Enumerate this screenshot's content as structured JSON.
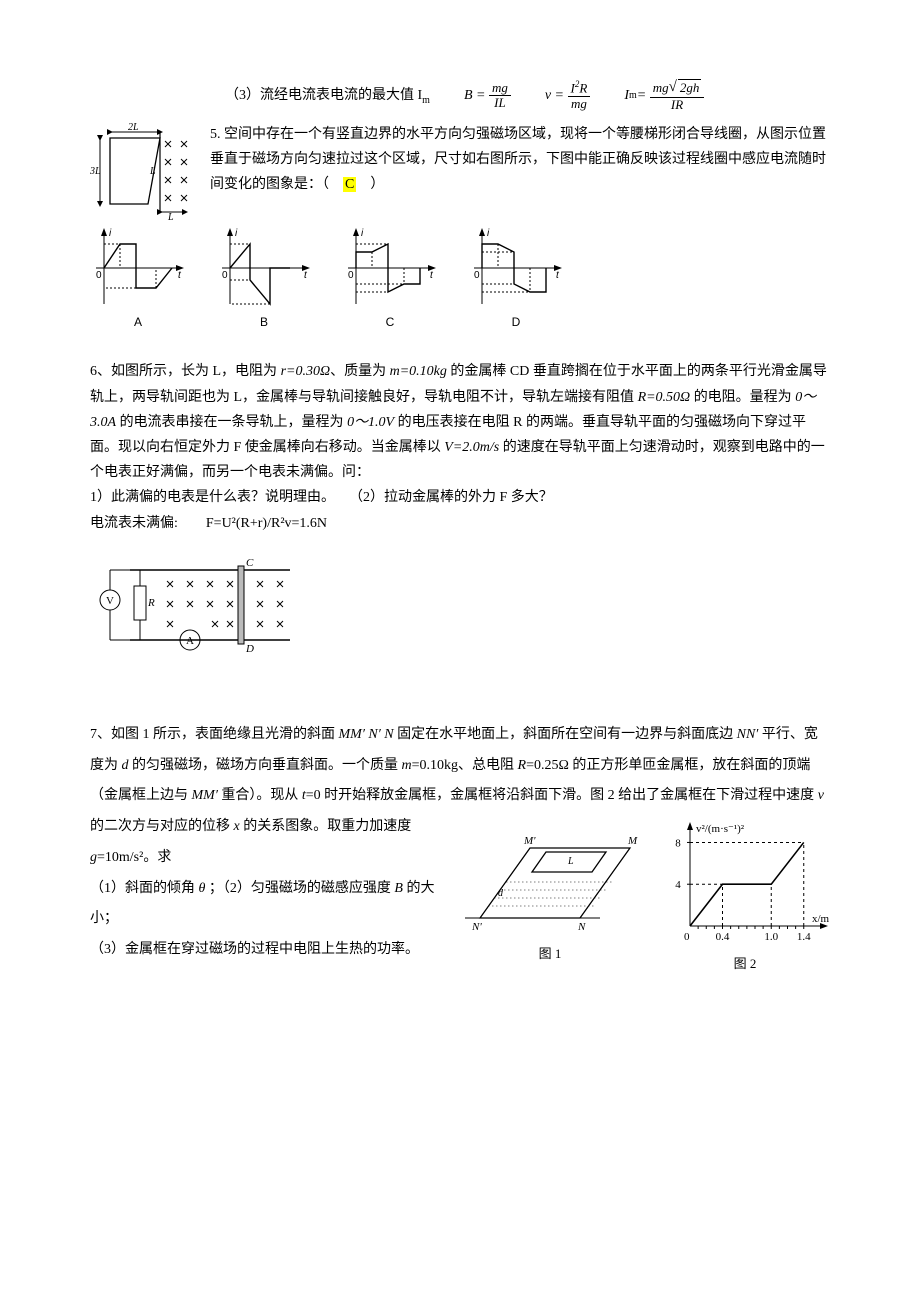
{
  "line3": {
    "prefix": "（3）流经电流表电流的最大值 I",
    "sub": "m",
    "f1_lhs": "B =",
    "f1_num": "mg",
    "f1_den": "IL",
    "f2_lhs": "v =",
    "f2_num_a": "I",
    "f2_num_exp": "2",
    "f2_num_b": "R",
    "f2_den": "mg",
    "f3_lhs_a": "I",
    "f3_lhs_sub": "m",
    "f3_eq": " =",
    "f3_num_a": "mg",
    "f3_num_rad": "2gh",
    "f3_den": "IR"
  },
  "p5": {
    "text": "5. 空间中存在一个有竖直边界的水平方向匀强磁场区域，现将一个等腰梯形闭合导线圈，从图示位置垂直于磁场方向匀速拉过这个区域，尺寸如右图所示，下图中能正确反映该过程线圈中感应电流随时间变化的图象是：（　",
    "ans": "C",
    "text2": "　）",
    "optA": "A",
    "optB": "B",
    "optC": "C",
    "optD": "D",
    "trap_2L": "2L",
    "trap_3L": "3L",
    "trap_Lr": "L",
    "trap_Lb": "L",
    "axis_i": "i",
    "axis_t": "t",
    "axis_0": "0"
  },
  "p6": {
    "t1a": "6、如图所示，长为 L，电阻为 ",
    "t1b": "r=0.30Ω",
    "t1c": "、质量为 ",
    "t1d": "m=0.10kg",
    "t1e": " 的金属棒 CD 垂直跨搁在位于水平面上的两条平行光滑金属导轨上，两导轨间距也为 L，金属棒与导轨间接触良好，导轨电阻不计，导轨左端接有阻值 ",
    "t2a": "R=0.50Ω",
    "t2b": " 的电阻。量程为 ",
    "t2c": "0～3.0A",
    "t2d": " 的电流表串接在一条导轨上，量程为 ",
    "t2e": "0～1.0V",
    "t2f": " 的电压表接在电阻 R 的两端。垂直导轨平面的匀强磁场向下穿过平面。现以向右恒定外力 F 使金属棒向右移动。当金属棒以 ",
    "t2g": "V=2.0m/s",
    "t2h": " 的速度在导轨平面上匀速滑动时，观察到电路中的一个电表正好满偏，而另一个电表未满偏。问：",
    "q1": "1）此满偏的电表是什么表？说明理由。　　（2）拉动金属棒的外力 F 多大？",
    "ans": "电流表未满偏:　　F=U²(R+r)/R²v=1.6N",
    "lblV": "V",
    "lblR": "R",
    "lblA": "A",
    "lblC": "C",
    "lblD": "D"
  },
  "p7": {
    "t1": "7、如图 1 所示，表面绝缘且光滑的斜面 ",
    "mm": "MM′ N′ N",
    "t1b": " 固定在水平地面上，斜面所在空间有一边界与斜面底边 ",
    "nn": "NN′",
    "t2": " 平行、宽度为 ",
    "d": "d",
    "t2b": " 的匀强磁场，磁场方向垂直斜面。一个质量 ",
    "m": "m",
    "t2c": "=0.10kg、总电阻 ",
    "R": "R",
    "t2d": "=0.25Ω 的正方形单匝金属框，放在斜面的顶端（金属框上边与 ",
    "mm2": "MM′",
    "t2e": " 重合）。现从 ",
    "tvar": "t",
    "t2f": "=0 时开始释放金属框，金属框将沿斜面下滑。图 2 给出了金属框在下滑过程中速度 ",
    "v": "v",
    "t3": " 的二次方与对应的位移 ",
    "x": "x",
    "t3b": " 的关系图象。取重力加速度 ",
    "g": "g",
    "t3c": "=10m/s²。求",
    "q1": "（1）斜面的倾角 ",
    "theta": "θ",
    "q1b": " ；（2）匀强磁场的磁感应强度 ",
    "B": "B",
    "q1c": " 的大小；",
    "q2": "（3）金属框在穿过磁场的过程中电阻上生热的功率。",
    "fig1cap": "图 1",
    "fig2cap": "图 2",
    "fig1_M1": "M'",
    "fig1_M2": "M",
    "fig1_N1": "N'",
    "fig1_N2": "N",
    "fig1_L": "L",
    "fig1_d": "d",
    "chart": {
      "ylabel": "v²/(m·s⁻¹)²",
      "xlabel": "x/m",
      "yticks": [
        "4",
        "8"
      ],
      "xticks": [
        "0",
        "0.4",
        "1.0",
        "1.4"
      ],
      "ylim": [
        0,
        9
      ],
      "xlim": [
        0,
        1.6
      ],
      "points": [
        [
          0,
          0
        ],
        [
          0.4,
          4
        ],
        [
          1.0,
          4
        ],
        [
          1.4,
          8
        ]
      ],
      "line_color": "#000000",
      "bg": "#ffffff"
    }
  }
}
